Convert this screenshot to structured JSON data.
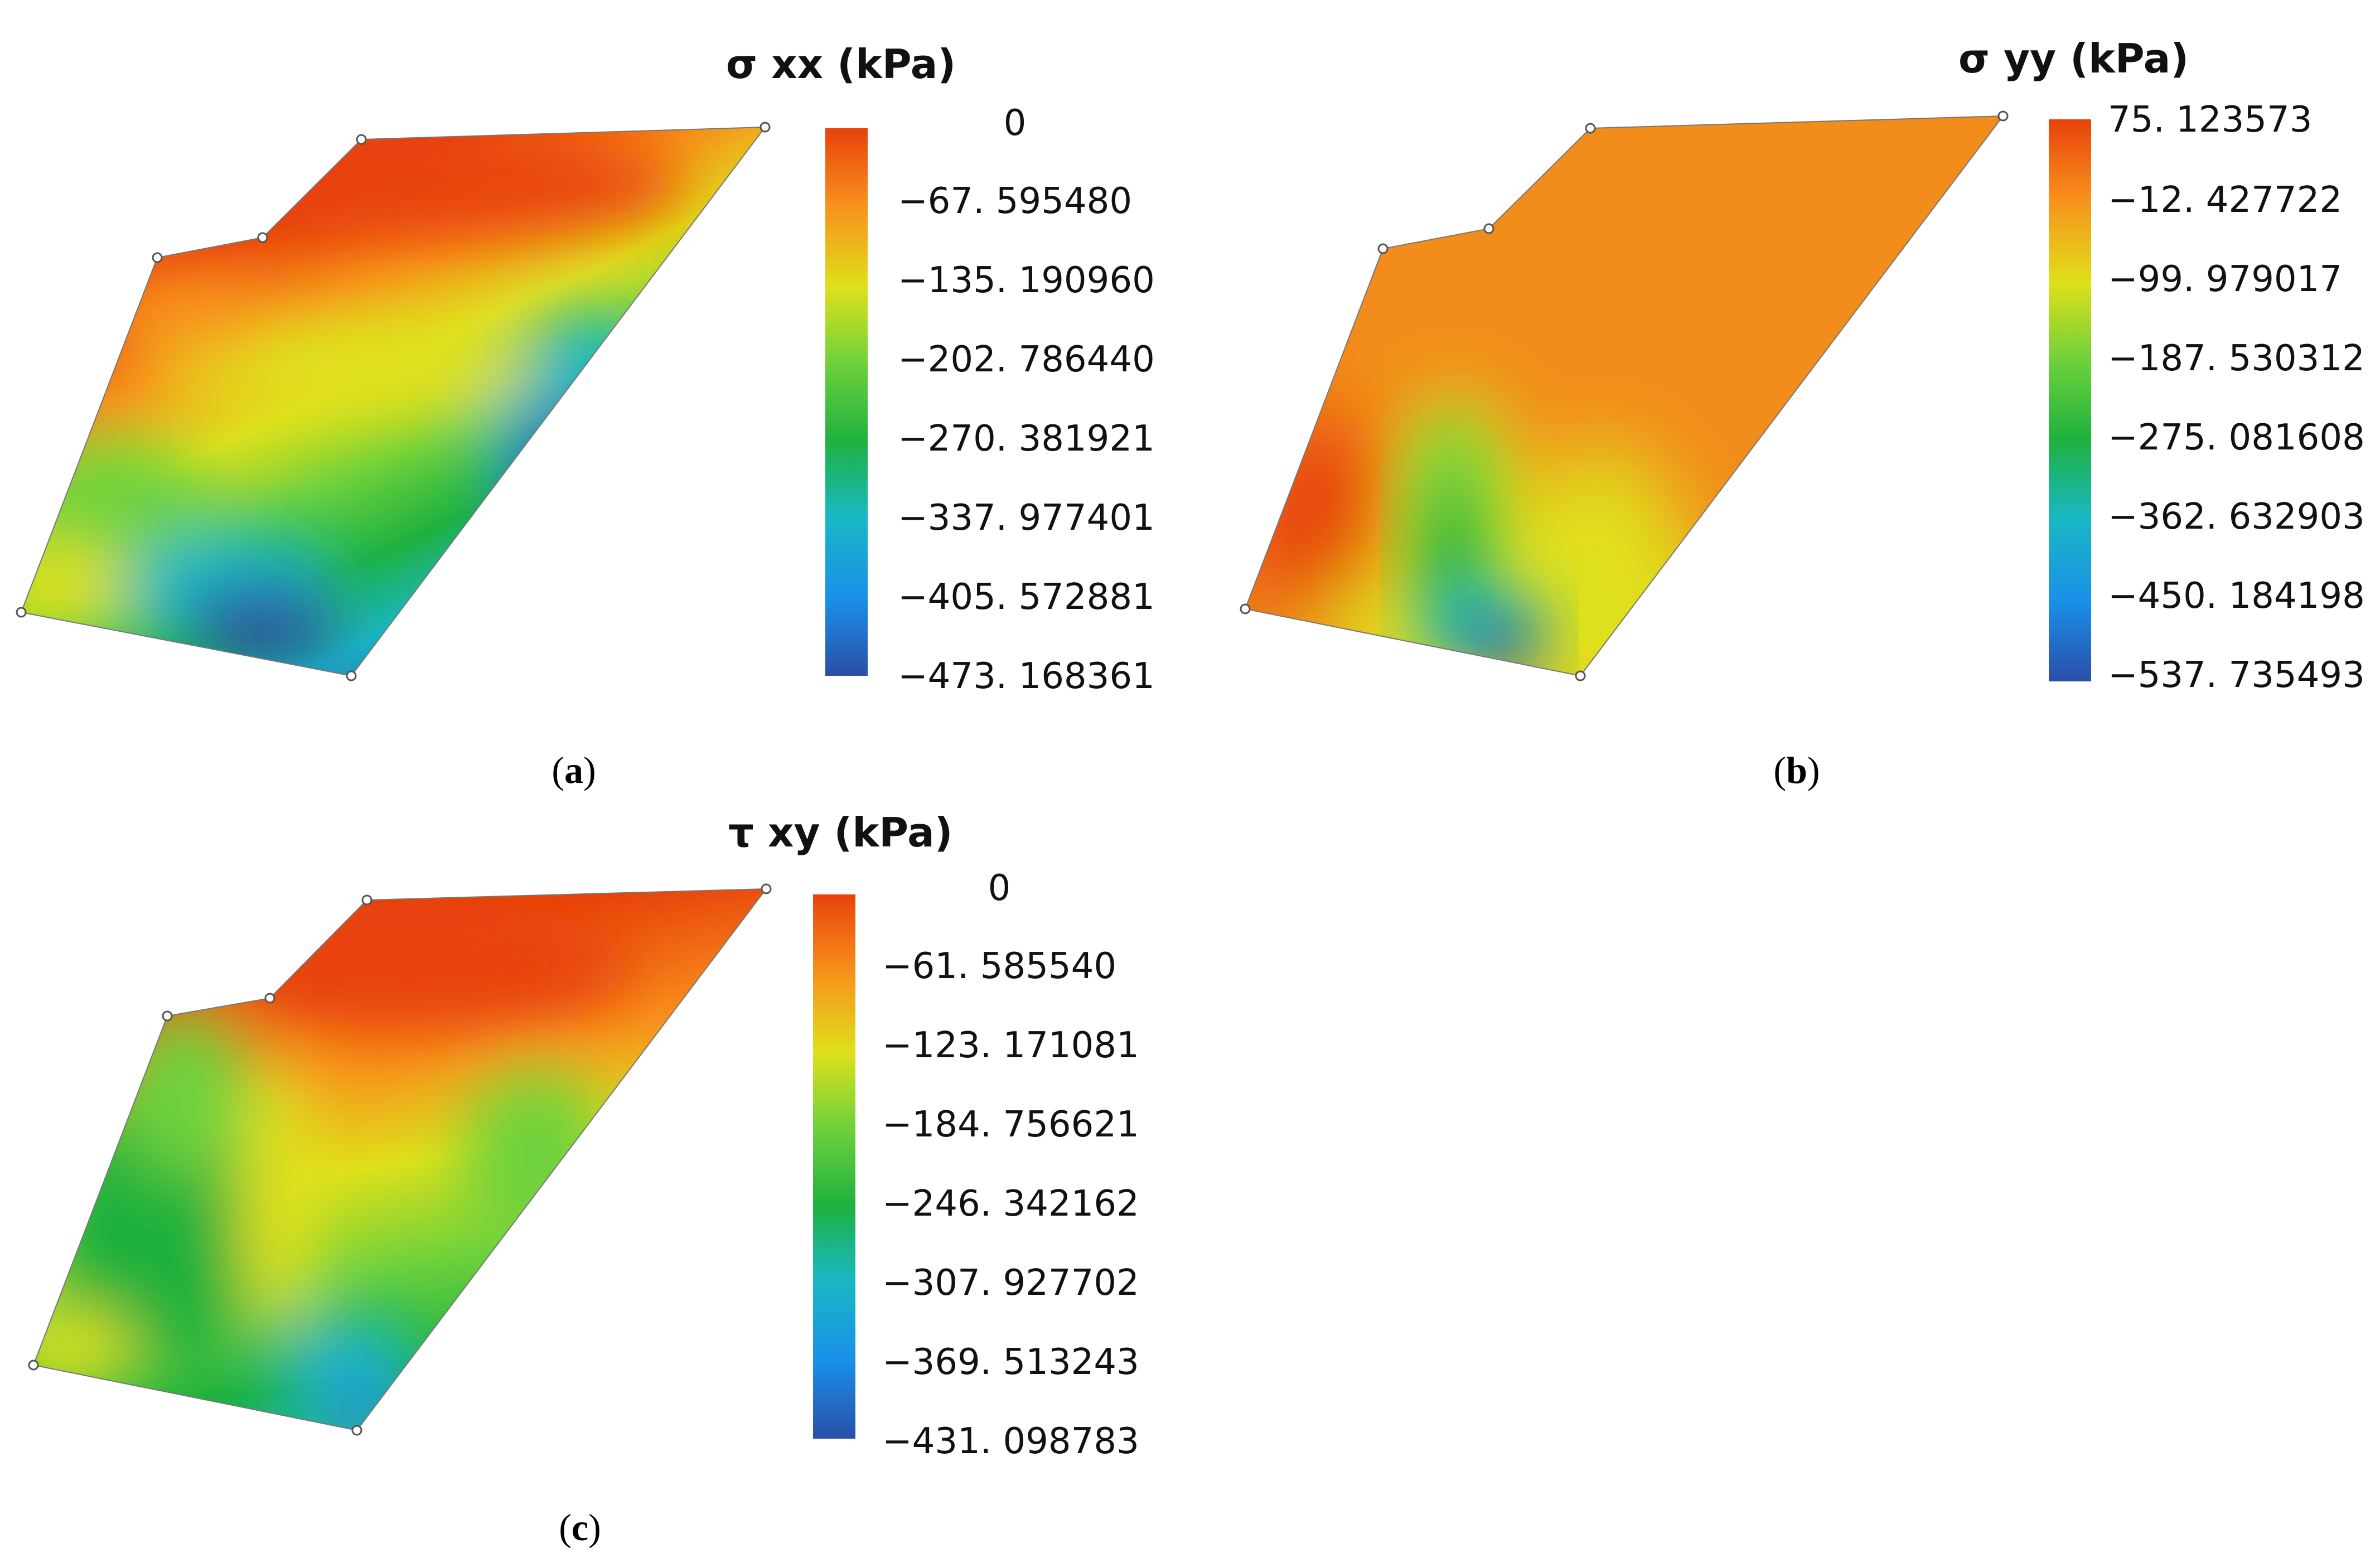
{
  "chart_data": [
    {
      "type": "heatmap",
      "panel": "a",
      "caption_letter": "a",
      "title": "σ xx (kPa)",
      "colorbar_ticks": [
        "0",
        "−67. 595480",
        "−135. 190960",
        "−202. 786440",
        "−270. 381921",
        "−337. 977401",
        "−405. 572881",
        "−473. 168361"
      ],
      "colorbar_range": [
        -473.168361,
        0
      ],
      "colormap": [
        "#e8420b",
        "#f8901c",
        "#dfe01a",
        "#6ed13c",
        "#1fb13e",
        "#19b8c4",
        "#1a8fe8",
        "#2a4ea6"
      ],
      "boundary_nodes": 6
    },
    {
      "type": "heatmap",
      "panel": "b",
      "caption_letter": "b",
      "title": "σ yy (kPa)",
      "colorbar_ticks": [
        "75. 123573",
        "−12. 427722",
        "−99. 979017",
        "−187. 530312",
        "−275. 081608",
        "−362. 632903",
        "−450. 184198",
        "−537. 735493"
      ],
      "colorbar_range": [
        -537.735493,
        75.123573
      ],
      "colormap": [
        "#e8420b",
        "#f8901c",
        "#dfe01a",
        "#6ed13c",
        "#1fb13e",
        "#19b8c4",
        "#1a8fe8",
        "#2a4ea6"
      ],
      "boundary_nodes": 6
    },
    {
      "type": "heatmap",
      "panel": "c",
      "caption_letter": "c",
      "title": "τ xy (kPa)",
      "colorbar_ticks": [
        "0",
        "−61. 585540",
        "−123. 171081",
        "−184. 756621",
        "−246. 342162",
        "−307. 927702",
        "−369. 513243",
        "−431. 098783"
      ],
      "colorbar_range": [
        -431.098783,
        0
      ],
      "colormap": [
        "#e8420b",
        "#f8901c",
        "#dfe01a",
        "#6ed13c",
        "#1fb13e",
        "#19b8c4",
        "#1a8fe8",
        "#2a4ea6"
      ],
      "boundary_nodes": 6
    }
  ]
}
